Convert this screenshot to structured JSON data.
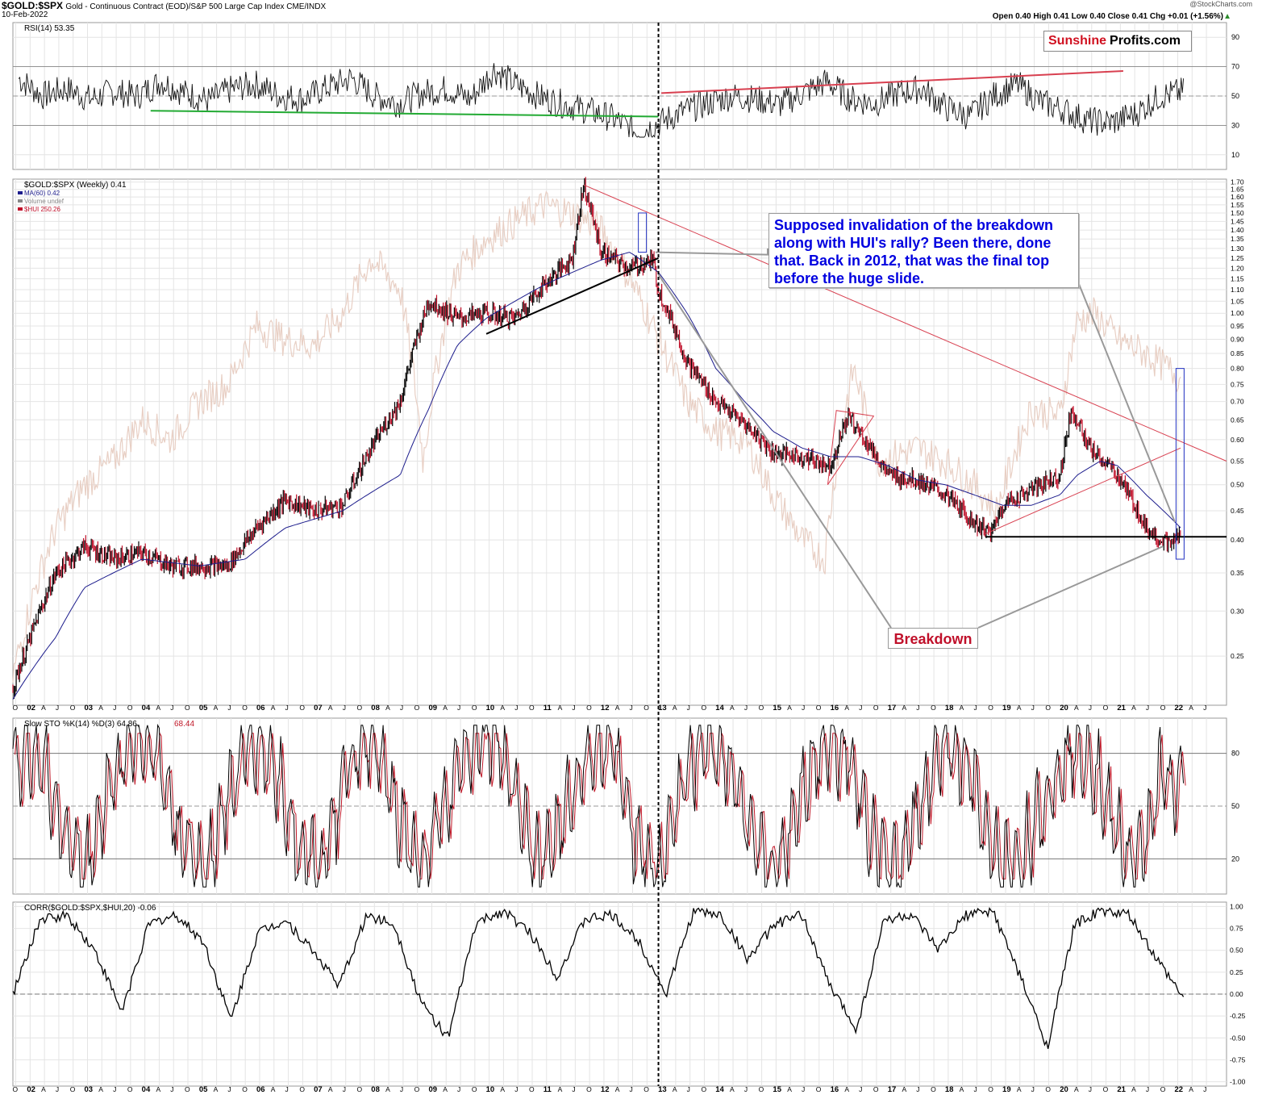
{
  "header": {
    "symbol": "$GOLD:$SPX",
    "description": "Gold - Continuous Contract (EOD)/S&P 500 Large Cap Index  CME/INDX",
    "date": "10-Feb-2022",
    "watermark": "@StockCharts.com",
    "ohlc": "Open 0.40  High 0.41  Low 0.40  Close 0.41  Chg +0.01 (+1.56%)"
  },
  "logo": {
    "part1": "Sunshine",
    "part2": "Profits.com"
  },
  "annotations": {
    "note": "Supposed invalidation of the breakdown along with HUI's rally? Been there, done that. Back in 2012, that was the final top before the huge slide.",
    "breakdown": "Breakdown"
  },
  "colors": {
    "price_up": "#000000",
    "price_down": "#c0102a",
    "ma": "#1c1c8c",
    "hui": "#e8cfc4",
    "trend_red": "#d84050",
    "trend_green": "#22aa33",
    "highlight_box": "#2030c0",
    "grid": "#e4e4e4"
  },
  "chart_data": [
    {
      "panel": "rsi",
      "type": "line",
      "label": "RSI(14) 53.35",
      "yticks": [
        90,
        70,
        50,
        30,
        10
      ],
      "ylim": [
        0,
        100
      ],
      "levels": [
        70,
        30
      ],
      "approx_values": [
        62,
        50,
        55,
        48,
        53,
        50,
        60,
        52,
        47,
        55,
        58,
        50,
        48,
        56,
        62,
        50,
        45,
        52,
        55,
        48,
        68,
        57,
        49,
        44,
        40,
        35,
        25,
        32,
        40,
        45,
        50,
        48,
        44,
        52,
        60,
        48,
        45,
        52,
        55,
        42,
        36,
        50,
        58,
        46,
        40,
        33,
        32,
        38,
        50,
        53
      ],
      "annotations": [
        "green support line 2004-2013 near 40",
        "red rising resistance line 2013-2021 from 52 to 67"
      ]
    },
    {
      "panel": "price",
      "type": "line",
      "label": "$GOLD:$SPX (Weekly) 0.41",
      "legend": [
        {
          "name": "MA(60) 0.42",
          "color": "#1c1c8c"
        },
        {
          "name": "Volume undef",
          "color": "#888888"
        },
        {
          "name": "$HUI 250.26",
          "color": "#c0102a"
        }
      ],
      "scale": "log",
      "ylim": [
        0.205,
        1.72
      ],
      "yticks": [
        1.7,
        1.65,
        1.6,
        1.55,
        1.5,
        1.45,
        1.4,
        1.35,
        1.3,
        1.25,
        1.2,
        1.15,
        1.1,
        1.05,
        1.0,
        0.95,
        0.9,
        0.85,
        0.8,
        0.75,
        0.7,
        0.65,
        0.6,
        0.55,
        0.5,
        0.45,
        0.4,
        0.35,
        0.3,
        0.25
      ],
      "x_start": 2001.75,
      "x_end": 2022.9,
      "x_labels": [
        "O",
        "02",
        "A",
        "J",
        "O",
        "03",
        "A",
        "J",
        "O",
        "04",
        "A",
        "J",
        "O",
        "05",
        "A",
        "J",
        "O",
        "06",
        "A",
        "J",
        "O",
        "07",
        "A",
        "J",
        "O",
        "08",
        "A",
        "J",
        "O",
        "09",
        "A",
        "J",
        "O",
        "10",
        "A",
        "J",
        "O",
        "11",
        "A",
        "J",
        "O",
        "12",
        "A",
        "J",
        "O",
        "13",
        "A",
        "J",
        "O",
        "14",
        "A",
        "J",
        "O",
        "15",
        "A",
        "J",
        "O",
        "16",
        "A",
        "J",
        "O",
        "17",
        "A",
        "J",
        "O",
        "18",
        "A",
        "J",
        "O",
        "19",
        "A",
        "J",
        "O",
        "20",
        "A",
        "J",
        "O",
        "21",
        "A",
        "J",
        "O",
        "22",
        "A",
        "J"
      ],
      "gold_spx": {
        "x": [
          2001.75,
          2002.0,
          2002.5,
          2003.0,
          2003.5,
          2004.0,
          2004.5,
          2005.0,
          2005.5,
          2006.0,
          2006.5,
          2007.0,
          2007.5,
          2008.0,
          2008.5,
          2009.0,
          2009.5,
          2010.0,
          2010.5,
          2011.0,
          2011.5,
          2011.7,
          2012.0,
          2012.5,
          2012.9,
          2013.0,
          2013.5,
          2014.0,
          2014.5,
          2015.0,
          2015.5,
          2016.0,
          2016.3,
          2016.6,
          2017.0,
          2017.5,
          2018.0,
          2018.5,
          2018.8,
          2019.0,
          2019.5,
          2020.0,
          2020.2,
          2020.5,
          2021.0,
          2021.5,
          2021.9,
          2022.1
        ],
        "y": [
          0.22,
          0.26,
          0.35,
          0.39,
          0.37,
          0.38,
          0.36,
          0.36,
          0.36,
          0.42,
          0.47,
          0.45,
          0.46,
          0.58,
          0.7,
          1.05,
          0.98,
          1.0,
          0.98,
          1.12,
          1.25,
          1.68,
          1.28,
          1.2,
          1.24,
          1.1,
          0.82,
          0.7,
          0.64,
          0.57,
          0.56,
          0.54,
          0.66,
          0.6,
          0.52,
          0.51,
          0.48,
          0.43,
          0.41,
          0.46,
          0.49,
          0.52,
          0.68,
          0.58,
          0.52,
          0.42,
          0.39,
          0.41
        ]
      },
      "ma60": {
        "x": [
          2001.75,
          2002.5,
          2003.0,
          2004.0,
          2005.0,
          2005.8,
          2006.5,
          2007.5,
          2008.5,
          2009.0,
          2009.5,
          2010.0,
          2010.5,
          2011.0,
          2011.5,
          2012.0,
          2012.5,
          2013.0,
          2013.5,
          2014.0,
          2014.5,
          2015.0,
          2015.5,
          2016.0,
          2016.5,
          2017.0,
          2017.5,
          2018.0,
          2018.5,
          2019.0,
          2019.5,
          2020.0,
          2020.3,
          2020.7,
          2021.0,
          2021.5,
          2022.1
        ],
        "y": [
          0.21,
          0.27,
          0.33,
          0.37,
          0.36,
          0.37,
          0.42,
          0.45,
          0.52,
          0.68,
          0.88,
          0.98,
          1.05,
          1.12,
          1.18,
          1.24,
          1.28,
          1.18,
          1.0,
          0.8,
          0.7,
          0.62,
          0.58,
          0.56,
          0.56,
          0.54,
          0.51,
          0.5,
          0.48,
          0.46,
          0.46,
          0.48,
          0.52,
          0.55,
          0.54,
          0.48,
          0.42
        ]
      },
      "hui": {
        "x": [
          2001.75,
          2002.5,
          2003.0,
          2003.5,
          2004.0,
          2004.5,
          2005.0,
          2005.5,
          2006.0,
          2006.5,
          2007.0,
          2007.5,
          2008.0,
          2008.5,
          2008.9,
          2009.5,
          2010.0,
          2010.5,
          2011.0,
          2011.5,
          2011.8,
          2012.0,
          2012.5,
          2013.0,
          2013.5,
          2014.0,
          2014.5,
          2015.0,
          2015.5,
          2015.9,
          2016.4,
          2016.8,
          2017.5,
          2018.0,
          2018.5,
          2018.9,
          2019.5,
          2020.0,
          2020.3,
          2020.6,
          2021.0,
          2021.5,
          2022.1
        ],
        "y": [
          0.23,
          0.42,
          0.5,
          0.55,
          0.65,
          0.6,
          0.7,
          0.75,
          0.95,
          0.9,
          0.88,
          1.0,
          1.25,
          1.1,
          0.55,
          1.2,
          1.35,
          1.45,
          1.55,
          1.5,
          1.45,
          1.4,
          1.15,
          0.9,
          0.7,
          0.62,
          0.6,
          0.48,
          0.4,
          0.37,
          0.8,
          0.55,
          0.58,
          0.55,
          0.5,
          0.45,
          0.68,
          0.66,
          0.97,
          1.0,
          0.9,
          0.85,
          0.77
        ]
      },
      "horizontal_support": 0.405,
      "annotations": [
        "black rising wedge line 2010-2013",
        "red falling resistance line from 2011 peak",
        "red rising line 2019-2022",
        "blue highlight boxes at 2012 top and 2022"
      ]
    },
    {
      "panel": "stochastic",
      "type": "line",
      "label": "Slow STO %K(14) %D(3) 64.86,",
      "label_d": "68.44",
      "yticks": [
        80,
        50,
        20
      ],
      "ylim": [
        0,
        100
      ],
      "approx_values": [
        75,
        85,
        40,
        10,
        60,
        90,
        80,
        30,
        12,
        55,
        88,
        70,
        25,
        15,
        70,
        90,
        50,
        12,
        45,
        85,
        92,
        60,
        18,
        40,
        82,
        88,
        35,
        10,
        62,
        90,
        75,
        22,
        14,
        60,
        88,
        80,
        30,
        12,
        50,
        86,
        70,
        20,
        15,
        45,
        80,
        85,
        40,
        12,
        65,
        64
      ]
    },
    {
      "panel": "correlation",
      "type": "line",
      "label": "CORR($GOLD:$SPX,$HUI,20) -0.06",
      "yticks": [
        1.0,
        0.75,
        0.5,
        0.25,
        0.0,
        -0.25,
        -0.5,
        -0.75,
        -1.0
      ],
      "ylim": [
        -1.05,
        1.05
      ],
      "approx_values": [
        0.0,
        0.85,
        0.9,
        0.5,
        -0.2,
        0.8,
        0.9,
        0.6,
        -0.3,
        0.7,
        0.85,
        0.5,
        0.1,
        0.9,
        0.8,
        -0.1,
        -0.5,
        0.8,
        0.95,
        0.7,
        0.2,
        0.85,
        0.9,
        0.6,
        0.0,
        0.95,
        0.9,
        0.4,
        0.8,
        0.9,
        0.1,
        -0.4,
        0.85,
        0.9,
        0.5,
        0.9,
        0.95,
        0.2,
        -0.6,
        0.8,
        0.95,
        0.9,
        0.4,
        -0.05
      ]
    }
  ]
}
